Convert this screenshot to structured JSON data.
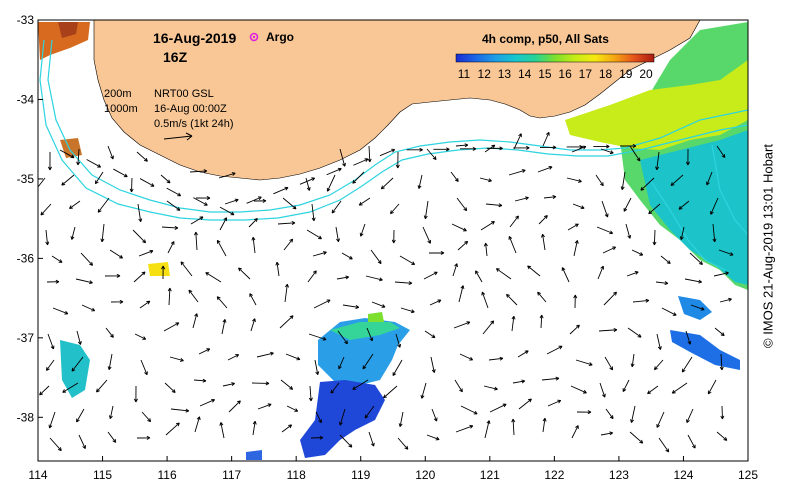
{
  "title": {
    "date": "16-Aug-2019",
    "hour": "16Z",
    "argo_label": "Argo"
  },
  "legend_info": {
    "iso200": "200m",
    "iso1000": "1000m",
    "product": "NRT00 GSL",
    "valid": "16-Aug 00:00Z",
    "scale": "0.5m/s (1kt 24h)"
  },
  "colorbar": {
    "title": "4h comp, p50, All Sats",
    "ticks": [
      "11",
      "12",
      "13",
      "14",
      "15",
      "16",
      "17",
      "18",
      "19",
      "20"
    ],
    "colors": [
      "#1b2bd3",
      "#1c67e6",
      "#1e9ee6",
      "#18c6cf",
      "#25d398",
      "#7ddf2d",
      "#c5ec16",
      "#f6ea12",
      "#f5a613",
      "#e6531b",
      "#a81b11"
    ]
  },
  "axes": {
    "x_ticks": [
      "114",
      "115",
      "116",
      "117",
      "118",
      "119",
      "120",
      "121",
      "122",
      "123",
      "124",
      "125"
    ],
    "y_ticks": [
      "-33",
      "-34",
      "-35",
      "-36",
      "-37",
      "-38"
    ],
    "xlim": [
      114,
      125
    ],
    "ylim": [
      -38.55,
      -33
    ]
  },
  "colors": {
    "land": "#f9c796",
    "isobath": "#2dd4e0",
    "arrow": "#000000",
    "argo": "#e020e0"
  },
  "credit": "© IMOS 21-Aug-2019 13:01 Hobart"
}
